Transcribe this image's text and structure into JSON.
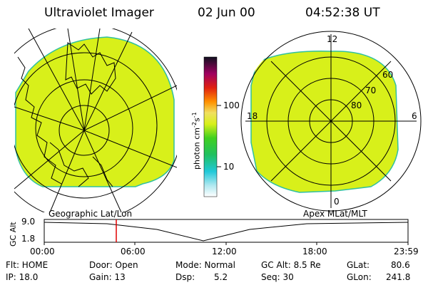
{
  "header": {
    "instrument": "Ultraviolet Imager",
    "date": "02 Jun 00",
    "time": "04:52:38 UT"
  },
  "colorbar": {
    "label": "photon cm",
    "label_sup1": "-2",
    "label_mid": "s",
    "label_sup2": "-1",
    "ticks": [
      "100",
      "10"
    ]
  },
  "left_panel": {
    "caption": "Geographic Lat/Lon"
  },
  "right_panel": {
    "caption": "Apex MLat/MLT",
    "mlt_labels": {
      "top": "12",
      "left": "18",
      "right": "6",
      "bottom": "0"
    },
    "lat_labels": [
      "60",
      "70",
      "80"
    ]
  },
  "altitude_plot": {
    "ylabel": "GC Alt",
    "y_ticks": [
      "9.0",
      "1.8"
    ],
    "x_ticks": [
      "00:00",
      "06:00",
      "12:00",
      "18:00",
      "23:59"
    ]
  },
  "info": {
    "flt": "Flt: HOME",
    "ip": "IP: 18.0",
    "door": "Door: Open",
    "gain": "Gain: 13",
    "mode": "Mode: Normal",
    "dsp_label": "Dsp:",
    "dsp_value": "5.2",
    "gc_alt": "GC Alt: 8.5 Re",
    "seq": "Seq: 30",
    "glat": "GLat:",
    "glat_value": "80.6",
    "glon": "GLon:",
    "glon_value": "241.8"
  },
  "colors": {
    "image_fill": "#d8f01a",
    "edge": "#2fc0a0",
    "marker": "#e00000"
  }
}
